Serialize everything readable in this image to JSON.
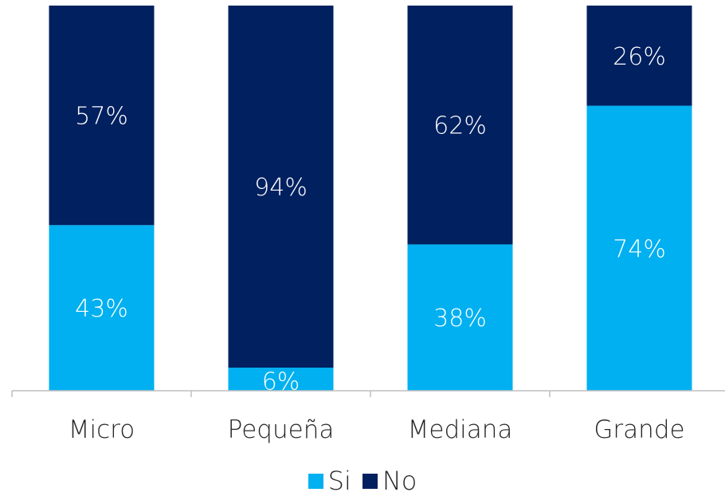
{
  "chart_data": {
    "type": "bar",
    "stacked": true,
    "percent": true,
    "categories": [
      "Micro",
      "Pequeña",
      "Mediana",
      "Grande"
    ],
    "series": [
      {
        "name": "Si",
        "values": [
          43,
          6,
          38,
          74
        ],
        "labels": [
          "43%",
          "6%",
          "38%",
          "74%"
        ],
        "color": "#00B0F0"
      },
      {
        "name": "No",
        "values": [
          57,
          94,
          62,
          26
        ],
        "labels": [
          "57%",
          "94%",
          "62%",
          "26%"
        ],
        "color": "#002060"
      }
    ],
    "ylim": [
      0,
      100
    ],
    "legend_position": "bottom",
    "grid": false
  }
}
